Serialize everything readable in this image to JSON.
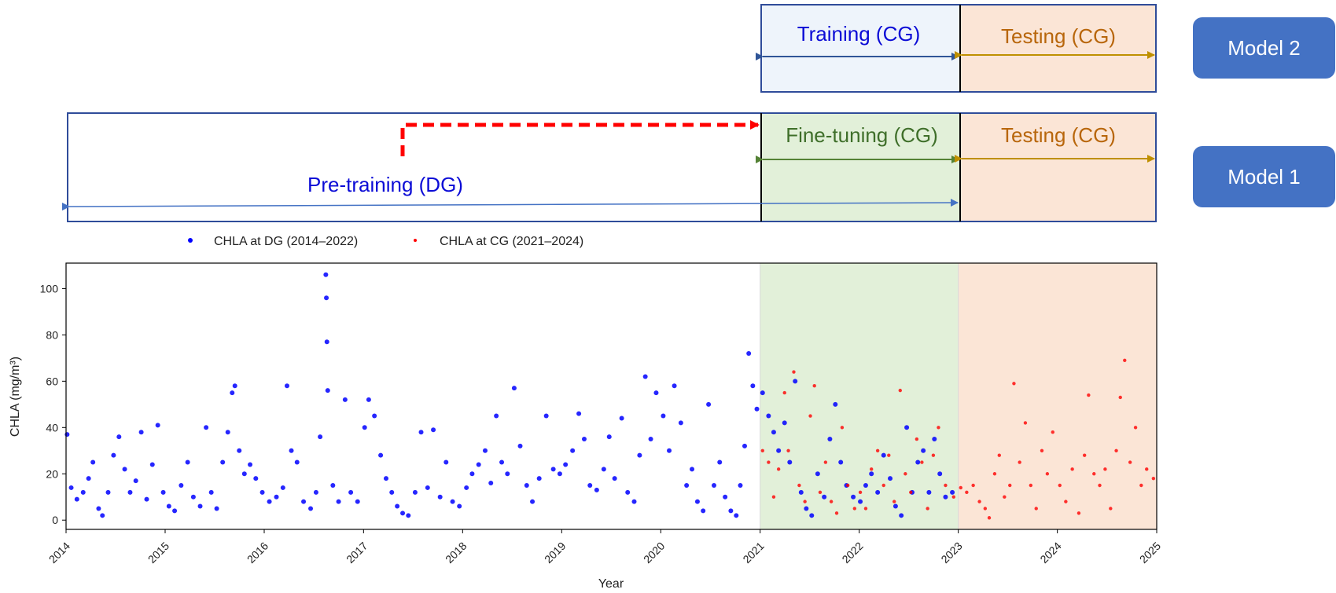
{
  "timeline": {
    "model2": {
      "training_label": "Training (CG)",
      "testing_label": "Testing (CG)",
      "button_label": "Model 2"
    },
    "model1": {
      "finetuning_label": "Fine-tuning (CG)",
      "testing_label": "Testing (CG)",
      "pretraining_label": "Pre-training (DG)",
      "button_label": "Model 1"
    },
    "colors": {
      "blue_text": "#0b0bd6",
      "orange_text": "#b8660b",
      "green_text": "#3f6f2a",
      "box_border": "#2f4c9a",
      "training_fill": "#eef4fb",
      "testing_fill": "#fbe5d6",
      "finetune_fill": "#e2f0d9",
      "transfer_arrow": "#ff0000",
      "button_fill": "#4472c4"
    }
  },
  "chart_data": {
    "type": "scatter",
    "xlabel": "Year",
    "ylabel": "CHLA (mg/m³)",
    "xlim": [
      "2014-01-01",
      "2025-01-01"
    ],
    "ylim": [
      -4,
      111
    ],
    "xticks": [
      "2014",
      "2015",
      "2016",
      "2017",
      "2018",
      "2019",
      "2020",
      "2021",
      "2022",
      "2023",
      "2024",
      "2025"
    ],
    "yticks": [
      0,
      20,
      40,
      60,
      80,
      100
    ],
    "grid": false,
    "legend_position": "top-left, above plot",
    "shaded_regions": [
      {
        "from": "2021-01-01",
        "to": "2023-01-01",
        "color": "#e2f0d9"
      },
      {
        "from": "2023-01-01",
        "to": "2025-01-01",
        "color": "#fbe5d6"
      }
    ],
    "series": [
      {
        "name": "CHLA at DG (2014–2022)",
        "color": "#0000ff",
        "points": [
          [
            "2014-01-05",
            37
          ],
          [
            "2014-01-20",
            14
          ],
          [
            "2014-02-10",
            9
          ],
          [
            "2014-03-05",
            12
          ],
          [
            "2014-03-25",
            18
          ],
          [
            "2014-04-10",
            25
          ],
          [
            "2014-05-01",
            5
          ],
          [
            "2014-05-15",
            2
          ],
          [
            "2014-06-05",
            12
          ],
          [
            "2014-06-25",
            28
          ],
          [
            "2014-07-15",
            36
          ],
          [
            "2014-08-05",
            22
          ],
          [
            "2014-08-25",
            12
          ],
          [
            "2014-09-15",
            17
          ],
          [
            "2014-10-05",
            38
          ],
          [
            "2014-10-25",
            9
          ],
          [
            "2014-11-15",
            24
          ],
          [
            "2014-12-05",
            41
          ],
          [
            "2014-12-25",
            12
          ],
          [
            "2015-01-15",
            6
          ],
          [
            "2015-02-05",
            4
          ],
          [
            "2015-03-01",
            15
          ],
          [
            "2015-03-25",
            25
          ],
          [
            "2015-04-15",
            10
          ],
          [
            "2015-05-10",
            6
          ],
          [
            "2015-06-01",
            40
          ],
          [
            "2015-06-20",
            12
          ],
          [
            "2015-07-10",
            5
          ],
          [
            "2015-08-01",
            25
          ],
          [
            "2015-08-20",
            38
          ],
          [
            "2015-09-05",
            55
          ],
          [
            "2015-09-15",
            58
          ],
          [
            "2015-10-01",
            30
          ],
          [
            "2015-10-20",
            20
          ],
          [
            "2015-11-10",
            24
          ],
          [
            "2015-12-01",
            18
          ],
          [
            "2015-12-25",
            12
          ],
          [
            "2016-01-20",
            8
          ],
          [
            "2016-02-15",
            10
          ],
          [
            "2016-03-10",
            14
          ],
          [
            "2016-03-25",
            58
          ],
          [
            "2016-04-10",
            30
          ],
          [
            "2016-05-01",
            25
          ],
          [
            "2016-05-25",
            8
          ],
          [
            "2016-06-20",
            5
          ],
          [
            "2016-07-10",
            12
          ],
          [
            "2016-07-25",
            36
          ],
          [
            "2016-08-15",
            106
          ],
          [
            "2016-08-17",
            96
          ],
          [
            "2016-08-19",
            77
          ],
          [
            "2016-08-22",
            56
          ],
          [
            "2016-09-10",
            15
          ],
          [
            "2016-10-01",
            8
          ],
          [
            "2016-10-25",
            52
          ],
          [
            "2016-11-15",
            12
          ],
          [
            "2016-12-10",
            8
          ],
          [
            "2017-01-05",
            40
          ],
          [
            "2017-01-20",
            52
          ],
          [
            "2017-02-10",
            45
          ],
          [
            "2017-03-05",
            28
          ],
          [
            "2017-03-25",
            18
          ],
          [
            "2017-04-15",
            12
          ],
          [
            "2017-05-05",
            6
          ],
          [
            "2017-05-25",
            3
          ],
          [
            "2017-06-15",
            2
          ],
          [
            "2017-07-10",
            12
          ],
          [
            "2017-08-01",
            38
          ],
          [
            "2017-08-25",
            14
          ],
          [
            "2017-09-15",
            39
          ],
          [
            "2017-10-10",
            10
          ],
          [
            "2017-11-01",
            25
          ],
          [
            "2017-11-25",
            8
          ],
          [
            "2017-12-20",
            6
          ],
          [
            "2018-01-15",
            14
          ],
          [
            "2018-02-05",
            20
          ],
          [
            "2018-03-01",
            24
          ],
          [
            "2018-03-25",
            30
          ],
          [
            "2018-04-15",
            16
          ],
          [
            "2018-05-05",
            45
          ],
          [
            "2018-05-25",
            25
          ],
          [
            "2018-06-15",
            20
          ],
          [
            "2018-07-10",
            57
          ],
          [
            "2018-08-01",
            32
          ],
          [
            "2018-08-25",
            15
          ],
          [
            "2018-09-15",
            8
          ],
          [
            "2018-10-10",
            18
          ],
          [
            "2018-11-05",
            45
          ],
          [
            "2018-12-01",
            22
          ],
          [
            "2018-12-25",
            20
          ],
          [
            "2019-01-15",
            24
          ],
          [
            "2019-02-10",
            30
          ],
          [
            "2019-03-05",
            46
          ],
          [
            "2019-03-25",
            35
          ],
          [
            "2019-04-15",
            15
          ],
          [
            "2019-05-10",
            13
          ],
          [
            "2019-06-05",
            22
          ],
          [
            "2019-06-25",
            36
          ],
          [
            "2019-07-15",
            18
          ],
          [
            "2019-08-10",
            44
          ],
          [
            "2019-09-01",
            12
          ],
          [
            "2019-09-25",
            8
          ],
          [
            "2019-10-15",
            28
          ],
          [
            "2019-11-05",
            62
          ],
          [
            "2019-11-25",
            35
          ],
          [
            "2019-12-15",
            55
          ],
          [
            "2020-01-10",
            45
          ],
          [
            "2020-02-01",
            30
          ],
          [
            "2020-02-20",
            58
          ],
          [
            "2020-03-15",
            42
          ],
          [
            "2020-04-05",
            15
          ],
          [
            "2020-04-25",
            22
          ],
          [
            "2020-05-15",
            8
          ],
          [
            "2020-06-05",
            4
          ],
          [
            "2020-06-25",
            50
          ],
          [
            "2020-07-15",
            15
          ],
          [
            "2020-08-05",
            25
          ],
          [
            "2020-08-25",
            10
          ],
          [
            "2020-09-15",
            4
          ],
          [
            "2020-10-05",
            2
          ],
          [
            "2020-10-20",
            15
          ],
          [
            "2020-11-05",
            32
          ],
          [
            "2020-11-20",
            72
          ],
          [
            "2020-12-05",
            58
          ],
          [
            "2020-12-20",
            48
          ],
          [
            "2021-01-10",
            55
          ],
          [
            "2021-02-01",
            45
          ],
          [
            "2021-02-20",
            38
          ],
          [
            "2021-03-10",
            30
          ],
          [
            "2021-04-01",
            42
          ],
          [
            "2021-04-20",
            25
          ],
          [
            "2021-05-10",
            60
          ],
          [
            "2021-06-01",
            12
          ],
          [
            "2021-06-20",
            5
          ],
          [
            "2021-07-10",
            2
          ],
          [
            "2021-08-01",
            20
          ],
          [
            "2021-08-25",
            10
          ],
          [
            "2021-09-15",
            35
          ],
          [
            "2021-10-05",
            50
          ],
          [
            "2021-10-25",
            25
          ],
          [
            "2021-11-15",
            15
          ],
          [
            "2021-12-10",
            10
          ],
          [
            "2022-01-05",
            8
          ],
          [
            "2022-01-25",
            15
          ],
          [
            "2022-02-15",
            20
          ],
          [
            "2022-03-10",
            12
          ],
          [
            "2022-04-01",
            28
          ],
          [
            "2022-04-25",
            18
          ],
          [
            "2022-05-15",
            6
          ],
          [
            "2022-06-05",
            2
          ],
          [
            "2022-06-25",
            40
          ],
          [
            "2022-07-15",
            12
          ],
          [
            "2022-08-05",
            25
          ],
          [
            "2022-08-25",
            30
          ],
          [
            "2022-09-15",
            12
          ],
          [
            "2022-10-05",
            35
          ],
          [
            "2022-10-25",
            20
          ],
          [
            "2022-11-15",
            10
          ],
          [
            "2022-12-10",
            12
          ]
        ]
      },
      {
        "name": "CHLA at CG (2021–2024)",
        "color": "#ff0000",
        "points": [
          [
            "2021-01-10",
            30
          ],
          [
            "2021-02-01",
            25
          ],
          [
            "2021-02-20",
            10
          ],
          [
            "2021-03-10",
            22
          ],
          [
            "2021-04-01",
            55
          ],
          [
            "2021-04-15",
            30
          ],
          [
            "2021-05-05",
            64
          ],
          [
            "2021-05-25",
            15
          ],
          [
            "2021-06-15",
            8
          ],
          [
            "2021-07-05",
            45
          ],
          [
            "2021-07-20",
            58
          ],
          [
            "2021-08-10",
            12
          ],
          [
            "2021-08-30",
            25
          ],
          [
            "2021-09-20",
            8
          ],
          [
            "2021-10-10",
            3
          ],
          [
            "2021-10-30",
            40
          ],
          [
            "2021-11-20",
            15
          ],
          [
            "2021-12-15",
            5
          ],
          [
            "2022-01-05",
            12
          ],
          [
            "2022-01-25",
            5
          ],
          [
            "2022-02-15",
            22
          ],
          [
            "2022-03-10",
            30
          ],
          [
            "2022-04-01",
            15
          ],
          [
            "2022-04-20",
            28
          ],
          [
            "2022-05-10",
            8
          ],
          [
            "2022-06-01",
            56
          ],
          [
            "2022-06-20",
            20
          ],
          [
            "2022-07-10",
            12
          ],
          [
            "2022-08-01",
            35
          ],
          [
            "2022-08-20",
            25
          ],
          [
            "2022-09-10",
            5
          ],
          [
            "2022-10-01",
            28
          ],
          [
            "2022-10-20",
            40
          ],
          [
            "2022-11-15",
            15
          ],
          [
            "2022-12-15",
            10
          ],
          [
            "2023-01-10",
            14
          ],
          [
            "2023-02-01",
            12
          ],
          [
            "2023-02-25",
            15
          ],
          [
            "2023-03-20",
            8
          ],
          [
            "2023-04-10",
            5
          ],
          [
            "2023-04-25",
            1
          ],
          [
            "2023-05-15",
            20
          ],
          [
            "2023-06-01",
            28
          ],
          [
            "2023-06-20",
            10
          ],
          [
            "2023-07-10",
            15
          ],
          [
            "2023-07-25",
            59
          ],
          [
            "2023-08-15",
            25
          ],
          [
            "2023-09-05",
            42
          ],
          [
            "2023-09-25",
            15
          ],
          [
            "2023-10-15",
            5
          ],
          [
            "2023-11-05",
            30
          ],
          [
            "2023-11-25",
            20
          ],
          [
            "2023-12-15",
            38
          ],
          [
            "2024-01-10",
            15
          ],
          [
            "2024-02-01",
            8
          ],
          [
            "2024-02-25",
            22
          ],
          [
            "2024-03-20",
            3
          ],
          [
            "2024-04-10",
            28
          ],
          [
            "2024-04-25",
            54
          ],
          [
            "2024-05-15",
            20
          ],
          [
            "2024-06-05",
            15
          ],
          [
            "2024-06-25",
            22
          ],
          [
            "2024-07-15",
            5
          ],
          [
            "2024-08-05",
            30
          ],
          [
            "2024-08-20",
            53
          ],
          [
            "2024-09-05",
            69
          ],
          [
            "2024-09-25",
            25
          ],
          [
            "2024-10-15",
            40
          ],
          [
            "2024-11-05",
            15
          ],
          [
            "2024-11-25",
            22
          ],
          [
            "2024-12-20",
            18
          ]
        ]
      }
    ]
  }
}
